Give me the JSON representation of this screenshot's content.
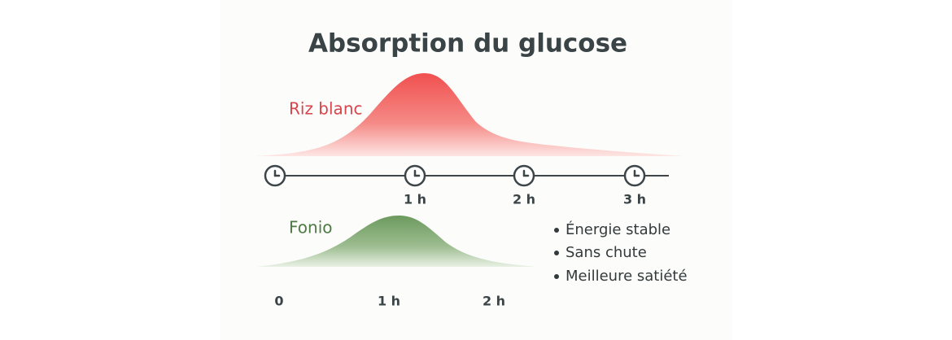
{
  "title": "Absorption du glucose",
  "rice": {
    "label": "Riz blanc",
    "timeline": [
      "1 h",
      "2 h",
      "3 h"
    ]
  },
  "fonio": {
    "label": "Fonio",
    "timeline": [
      "0",
      "1 h",
      "2 h"
    ],
    "benefits": [
      "Énergie stable",
      "Sans chute",
      "Meilleure satiété"
    ]
  }
}
